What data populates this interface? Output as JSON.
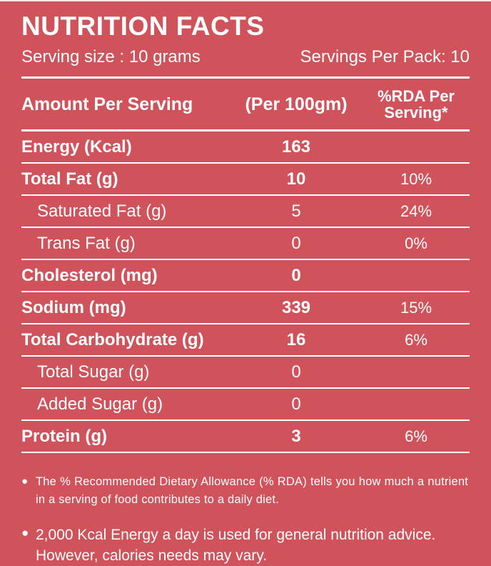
{
  "colors": {
    "background": "#D0525A",
    "text": "#FFFFFF",
    "divider": "#FFFFFF"
  },
  "header": {
    "title": "NUTRITION FACTS",
    "serving_size": "Serving size : 10 grams",
    "servings_per_pack": "Servings Per Pack: 10"
  },
  "table": {
    "columns": {
      "amount": "Amount Per Serving",
      "per100": "(Per 100gm)",
      "rda_line1": "%RDA Per",
      "rda_line2": "Serving*"
    },
    "rows": [
      {
        "label": "Energy (Kcal)",
        "value": "163",
        "rda": "",
        "bold": true,
        "indent": false
      },
      {
        "label": "Total Fat (g)",
        "value": "10",
        "rda": "10%",
        "bold": true,
        "indent": false
      },
      {
        "label": "Saturated Fat (g)",
        "value": "5",
        "rda": "24%",
        "bold": false,
        "indent": true
      },
      {
        "label": "Trans Fat (g)",
        "value": "0",
        "rda": "0%",
        "bold": false,
        "indent": true
      },
      {
        "label": "Cholesterol (mg)",
        "value": "0",
        "rda": "",
        "bold": true,
        "indent": false
      },
      {
        "label": "Sodium (mg)",
        "value": "339",
        "rda": "15%",
        "bold": true,
        "indent": false
      },
      {
        "label": "Total Carbohydrate (g)",
        "value": "16",
        "rda": "6%",
        "bold": true,
        "indent": false
      },
      {
        "label": "Total Sugar (g)",
        "value": "0",
        "rda": "",
        "bold": false,
        "indent": true
      },
      {
        "label": "Added Sugar (g)",
        "value": "0",
        "rda": "",
        "bold": false,
        "indent": true
      },
      {
        "label": "Protein (g)",
        "value": "3",
        "rda": "6%",
        "bold": true,
        "indent": false
      }
    ]
  },
  "footnotes": {
    "bullet": "●",
    "note1": "The % Recommended Dietary Allowance (% RDA) tells you how much a nutrient in a serving of food contributes to a daily diet.",
    "note2": "2,000 Kcal Energy a day is used for general nutrition advice. However, calories needs may vary."
  }
}
